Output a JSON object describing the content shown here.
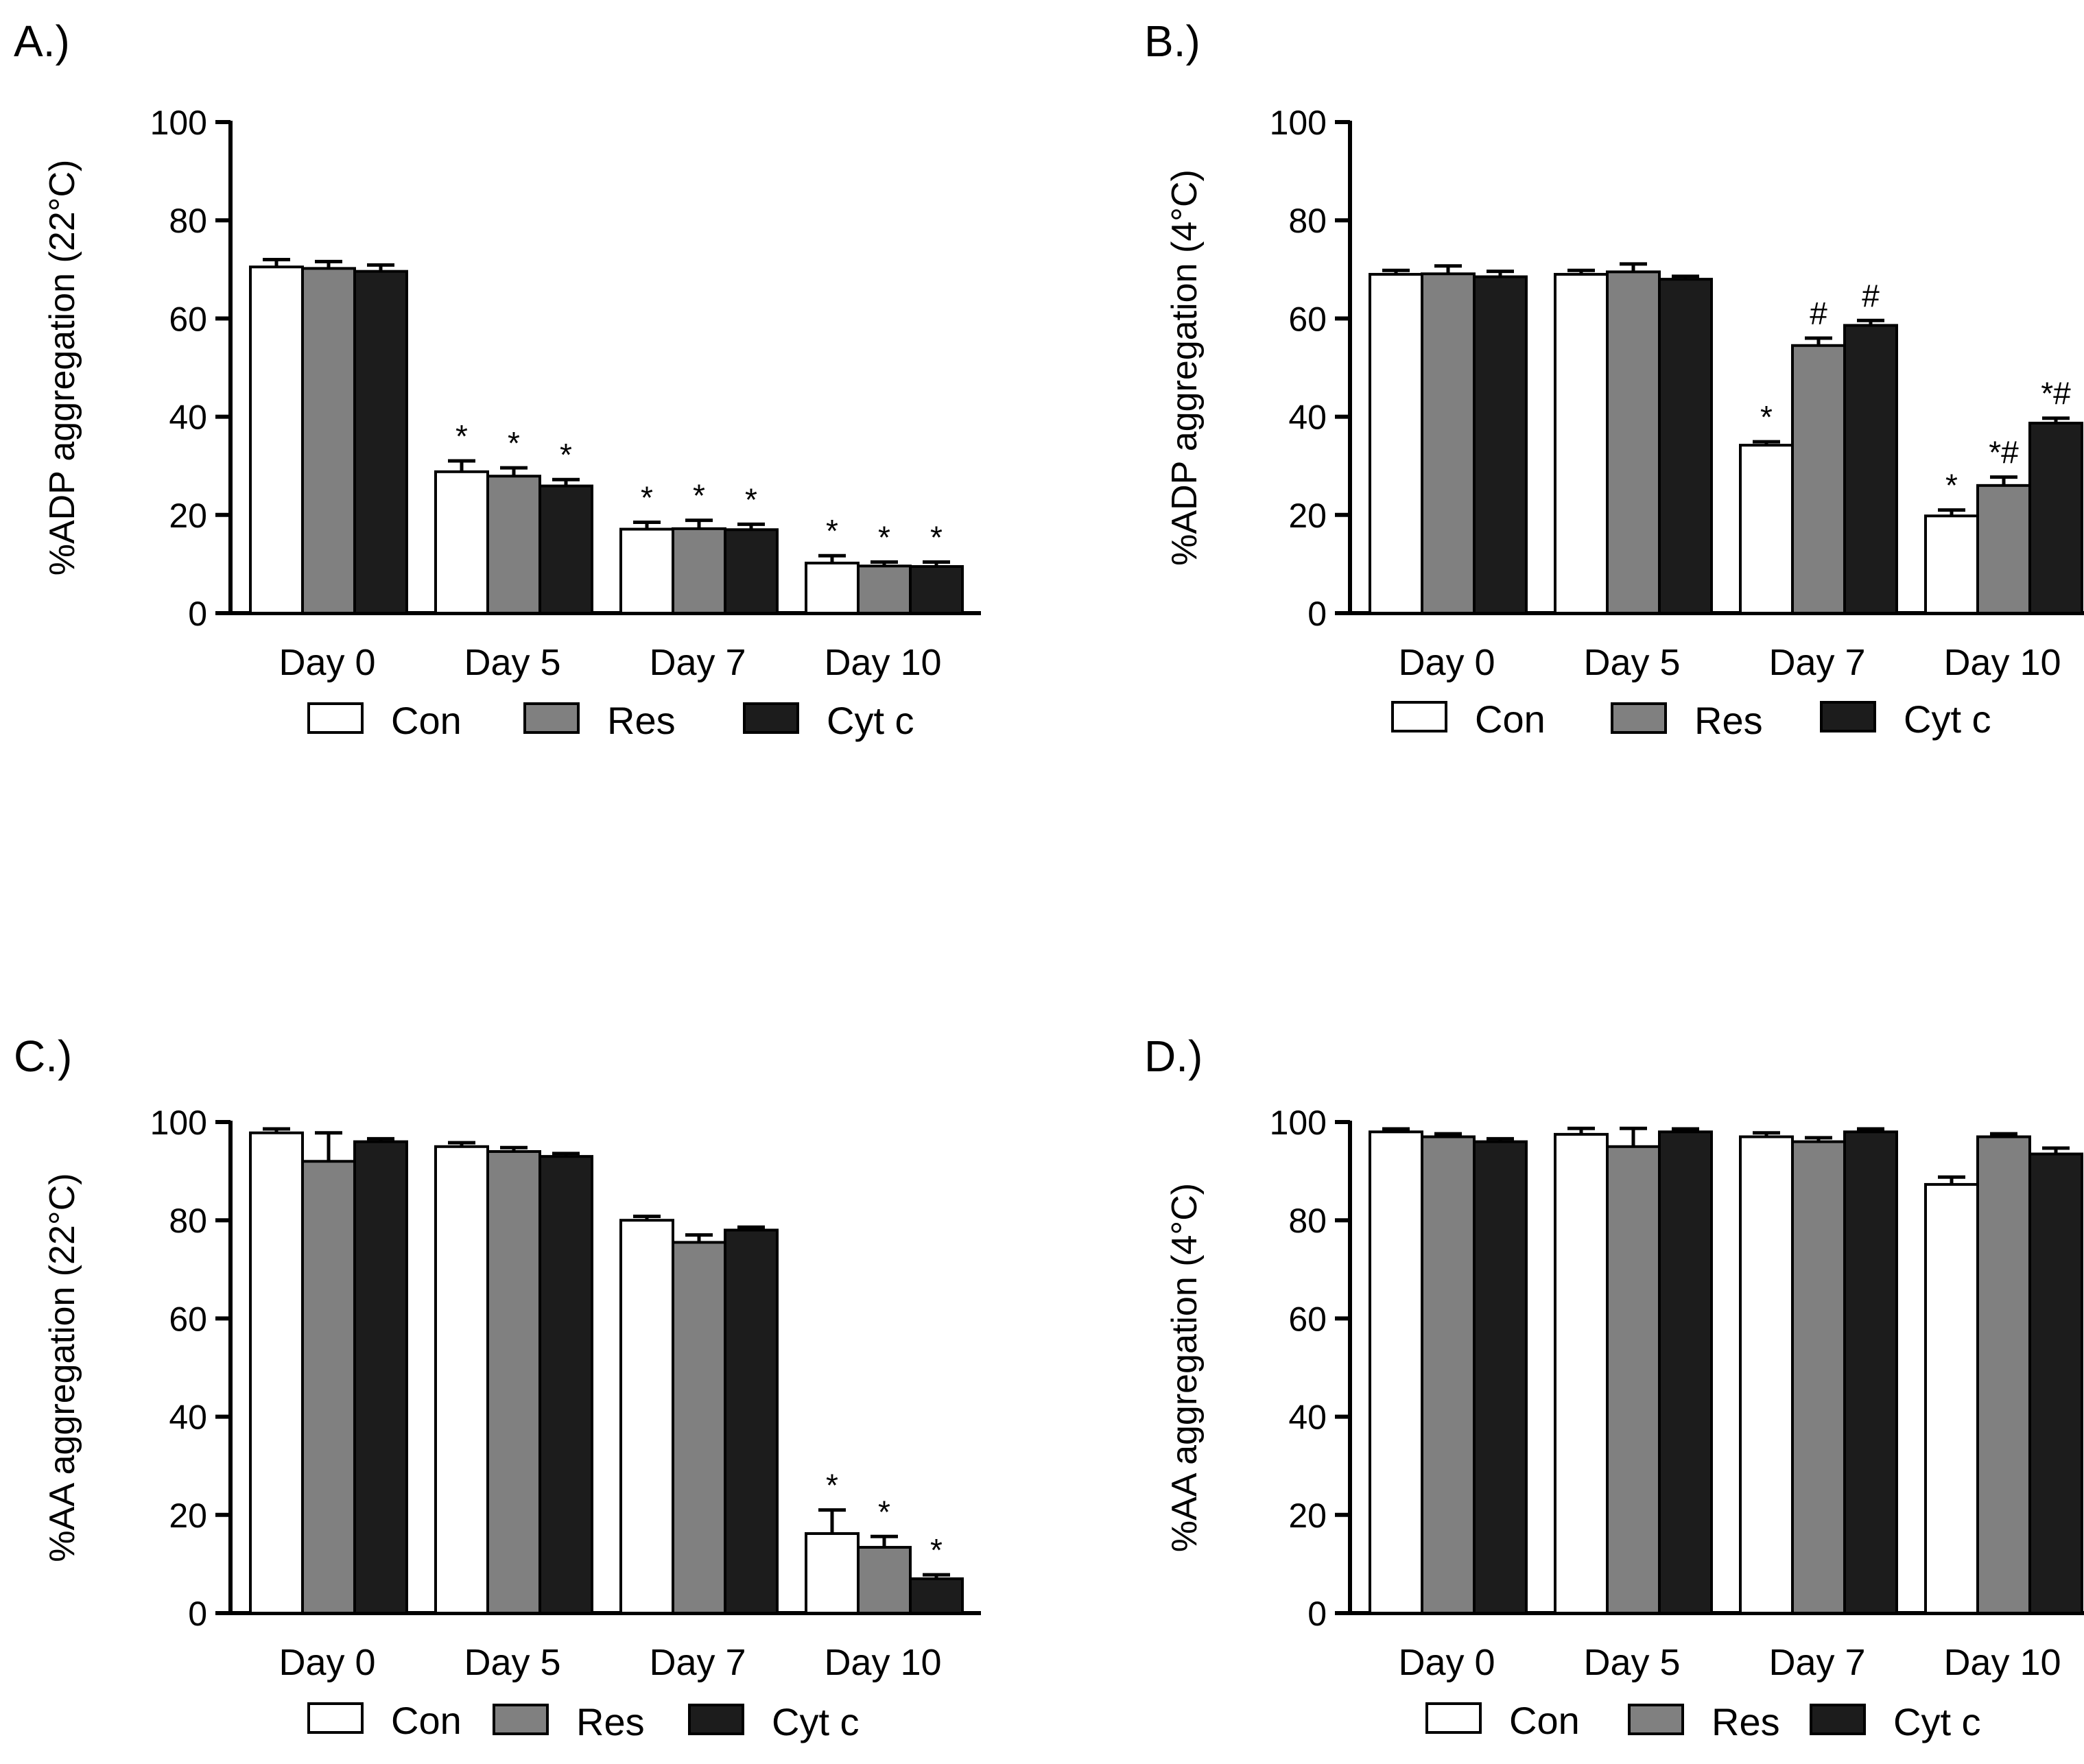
{
  "figure": {
    "colors": {
      "Con": "#ffffff",
      "Res": "#808080",
      "Cyt c": "#1c1c1c",
      "axis": "#000000"
    }
  },
  "chart_data": [
    {
      "panel": "A.)",
      "type": "bar",
      "ylabel": "%ADP aggregation (22°C)",
      "ylim": [
        0,
        100
      ],
      "yticks": [
        0,
        20,
        40,
        60,
        80,
        100
      ],
      "categories": [
        "Day 0",
        "Day 5",
        "Day 7",
        "Day 10"
      ],
      "series": [
        {
          "name": "Con",
          "values": [
            70.5,
            28.8,
            17.1,
            10.2
          ],
          "errors": [
            1.5,
            2.2,
            1.4,
            1.5
          ],
          "annotations": [
            "",
            "*",
            "*",
            "*"
          ]
        },
        {
          "name": "Res",
          "values": [
            70.2,
            27.9,
            17.2,
            9.6
          ],
          "errors": [
            1.4,
            1.7,
            1.7,
            0.8
          ],
          "annotations": [
            "",
            "*",
            "*",
            "*"
          ]
        },
        {
          "name": "Cyt c",
          "values": [
            69.6,
            25.9,
            17.0,
            9.5
          ],
          "errors": [
            1.3,
            1.3,
            1.1,
            0.9
          ],
          "annotations": [
            "",
            "*",
            "*",
            "*"
          ]
        }
      ],
      "legend": [
        "Con",
        "Res",
        "Cyt c"
      ]
    },
    {
      "panel": "B.)",
      "type": "bar",
      "ylabel": "%ADP aggregation (4°C)",
      "ylim": [
        0,
        100
      ],
      "yticks": [
        0,
        20,
        40,
        60,
        80,
        100
      ],
      "categories": [
        "Day 0",
        "Day 5",
        "Day 7",
        "Day 10"
      ],
      "series": [
        {
          "name": "Con",
          "values": [
            69.0,
            69.0,
            34.2,
            19.8
          ],
          "errors": [
            0.8,
            0.8,
            0.7,
            1.2
          ],
          "annotations": [
            "",
            "",
            "*",
            "*"
          ]
        },
        {
          "name": "Res",
          "values": [
            69.1,
            69.5,
            54.5,
            26.0
          ],
          "errors": [
            1.6,
            1.6,
            1.5,
            1.7
          ],
          "annotations": [
            "",
            "",
            "#",
            "*#"
          ]
        },
        {
          "name": "Cyt c",
          "values": [
            68.5,
            68.0,
            58.6,
            38.7
          ],
          "errors": [
            1.1,
            0.6,
            1.0,
            1.0
          ],
          "annotations": [
            "",
            "",
            "#",
            "*#"
          ]
        }
      ],
      "legend": [
        "Con",
        "Res",
        "Cyt c"
      ]
    },
    {
      "panel": "C.)",
      "type": "bar",
      "ylabel": "%AA aggregation (22°C)",
      "ylim": [
        0,
        100
      ],
      "yticks": [
        0,
        20,
        40,
        60,
        80,
        100
      ],
      "categories": [
        "Day 0",
        "Day 5",
        "Day 7",
        "Day 10"
      ],
      "series": [
        {
          "name": "Con",
          "values": [
            97.8,
            95.0,
            80.0,
            16.2
          ],
          "errors": [
            0.8,
            0.8,
            0.8,
            4.8
          ],
          "annotations": [
            "",
            "",
            "",
            "*"
          ]
        },
        {
          "name": "Res",
          "values": [
            92.0,
            94.0,
            75.5,
            13.4
          ],
          "errors": [
            5.8,
            0.8,
            1.5,
            2.2
          ],
          "annotations": [
            "",
            "",
            "",
            "*"
          ]
        },
        {
          "name": "Cyt c",
          "values": [
            96.0,
            93.0,
            78.0,
            7.0
          ],
          "errors": [
            0.6,
            0.6,
            0.6,
            0.8
          ],
          "annotations": [
            "",
            "",
            "",
            "*"
          ]
        }
      ],
      "legend": [
        "Con",
        "Res",
        "Cyt c"
      ]
    },
    {
      "panel": "D.)",
      "type": "bar",
      "ylabel": "%AA aggregation (4°C)",
      "ylim": [
        0,
        100
      ],
      "yticks": [
        0,
        20,
        40,
        60,
        80,
        100
      ],
      "categories": [
        "Day 0",
        "Day 5",
        "Day 7",
        "Day 10"
      ],
      "series": [
        {
          "name": "Con",
          "values": [
            98.0,
            97.5,
            97.0,
            87.3
          ],
          "errors": [
            0.6,
            1.2,
            0.8,
            1.5
          ],
          "annotations": [
            "",
            "",
            "",
            ""
          ]
        },
        {
          "name": "Res",
          "values": [
            97.0,
            95.0,
            96.0,
            97.0
          ],
          "errors": [
            0.6,
            3.7,
            0.8,
            0.6
          ],
          "annotations": [
            "",
            "",
            "",
            ""
          ]
        },
        {
          "name": "Cyt c",
          "values": [
            96.0,
            98.0,
            98.0,
            93.5
          ],
          "errors": [
            0.6,
            0.6,
            0.6,
            1.2
          ],
          "annotations": [
            "",
            "",
            "",
            ""
          ]
        }
      ],
      "legend": [
        "Con",
        "Res",
        "Cyt c"
      ]
    }
  ]
}
